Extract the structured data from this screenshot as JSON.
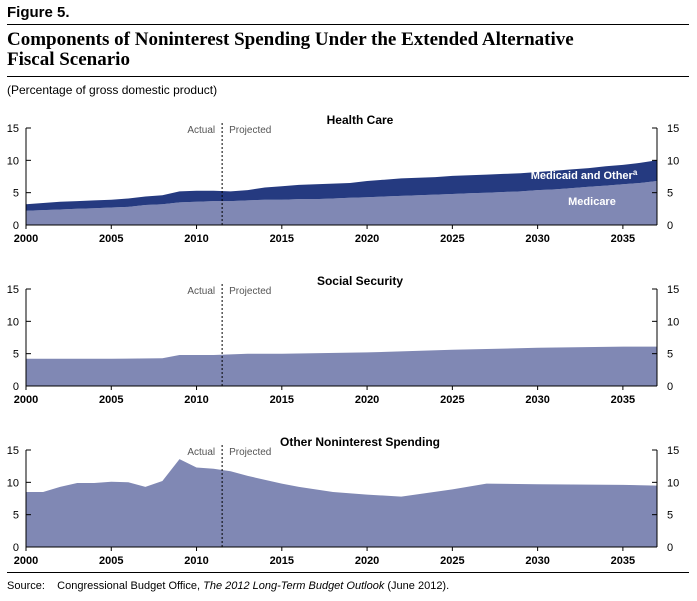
{
  "figure_label": "Figure 5.",
  "title_line1": "Components of Noninterest Spending Under the Extended Alternative",
  "title_line2": "Fiscal Scenario",
  "subtitle": "(Percentage of gross domestic product)",
  "source": {
    "prefix": "Source:",
    "agency": "Congressional Budget Office,",
    "publication": "The 2012 Long-Term Budget Outlook",
    "suffix": "(June 2012)."
  },
  "colors": {
    "dark": "#253a80",
    "light": "#8088b4",
    "divider": "#000000"
  },
  "annotations": {
    "actual": "Actual",
    "projected": "Projected",
    "divider_year": 2011.5
  },
  "chart_data": [
    {
      "type": "area",
      "stacked": true,
      "title": "Health Care",
      "x": [
        2000,
        2001,
        2002,
        2003,
        2004,
        2005,
        2006,
        2007,
        2008,
        2009,
        2010,
        2011,
        2012,
        2013,
        2014,
        2015,
        2016,
        2017,
        2018,
        2019,
        2020,
        2021,
        2022,
        2023,
        2024,
        2025,
        2026,
        2027,
        2028,
        2029,
        2030,
        2031,
        2032,
        2033,
        2034,
        2035,
        2036,
        2037
      ],
      "xlim": [
        2000,
        2037
      ],
      "xticks": [
        2000,
        2005,
        2010,
        2015,
        2020,
        2025,
        2030,
        2035
      ],
      "ylim": [
        0,
        15
      ],
      "yticks": [
        0,
        5,
        10,
        15
      ],
      "series": [
        {
          "name": "Medicare",
          "color": "#8088b4",
          "values": [
            2.2,
            2.3,
            2.4,
            2.5,
            2.6,
            2.7,
            2.8,
            3.1,
            3.2,
            3.5,
            3.6,
            3.7,
            3.7,
            3.8,
            3.9,
            3.9,
            4.0,
            4.0,
            4.1,
            4.2,
            4.3,
            4.4,
            4.5,
            4.6,
            4.7,
            4.8,
            4.9,
            5.0,
            5.1,
            5.2,
            5.4,
            5.5,
            5.7,
            5.9,
            6.1,
            6.3,
            6.5,
            6.8
          ]
        },
        {
          "name": "Medicaid and Other",
          "name_superscript": "a",
          "color": "#253a80",
          "values": [
            1.0,
            1.1,
            1.2,
            1.2,
            1.2,
            1.2,
            1.3,
            1.3,
            1.4,
            1.7,
            1.7,
            1.6,
            1.5,
            1.6,
            1.9,
            2.1,
            2.2,
            2.3,
            2.3,
            2.3,
            2.5,
            2.6,
            2.7,
            2.7,
            2.7,
            2.8,
            2.8,
            2.8,
            2.8,
            2.8,
            2.8,
            2.9,
            2.9,
            2.9,
            3.0,
            3.0,
            3.1,
            3.2
          ]
        }
      ]
    },
    {
      "type": "area",
      "title": "Social Security",
      "x": [
        2000,
        2005,
        2008,
        2009,
        2010,
        2011,
        2013,
        2015,
        2020,
        2025,
        2030,
        2035,
        2037
      ],
      "xlim": [
        2000,
        2037
      ],
      "xticks": [
        2000,
        2005,
        2010,
        2015,
        2020,
        2025,
        2030,
        2035
      ],
      "ylim": [
        0,
        15
      ],
      "yticks": [
        0,
        5,
        10,
        15
      ],
      "series": [
        {
          "color": "#8088b4",
          "values": [
            4.2,
            4.2,
            4.3,
            4.8,
            4.8,
            4.8,
            5.0,
            5.0,
            5.2,
            5.6,
            5.9,
            6.1,
            6.1
          ]
        }
      ]
    },
    {
      "type": "area",
      "title": "Other Noninterest Spending",
      "x": [
        2000,
        2001,
        2002,
        2003,
        2004,
        2005,
        2006,
        2007,
        2008,
        2009,
        2010,
        2011,
        2012,
        2013,
        2015,
        2016,
        2018,
        2020,
        2022,
        2025,
        2027,
        2030,
        2035,
        2037
      ],
      "xlim": [
        2000,
        2037
      ],
      "xticks": [
        2000,
        2005,
        2010,
        2015,
        2020,
        2025,
        2030,
        2035
      ],
      "ylim": [
        0,
        15
      ],
      "yticks": [
        0,
        5,
        10,
        15
      ],
      "series": [
        {
          "color": "#8088b4",
          "values": [
            8.5,
            8.5,
            9.3,
            9.9,
            9.9,
            10.1,
            10.0,
            9.3,
            10.2,
            13.6,
            12.3,
            12.1,
            11.7,
            11.0,
            9.8,
            9.3,
            8.5,
            8.1,
            7.8,
            8.9,
            9.8,
            9.7,
            9.6,
            9.5
          ]
        }
      ]
    }
  ]
}
